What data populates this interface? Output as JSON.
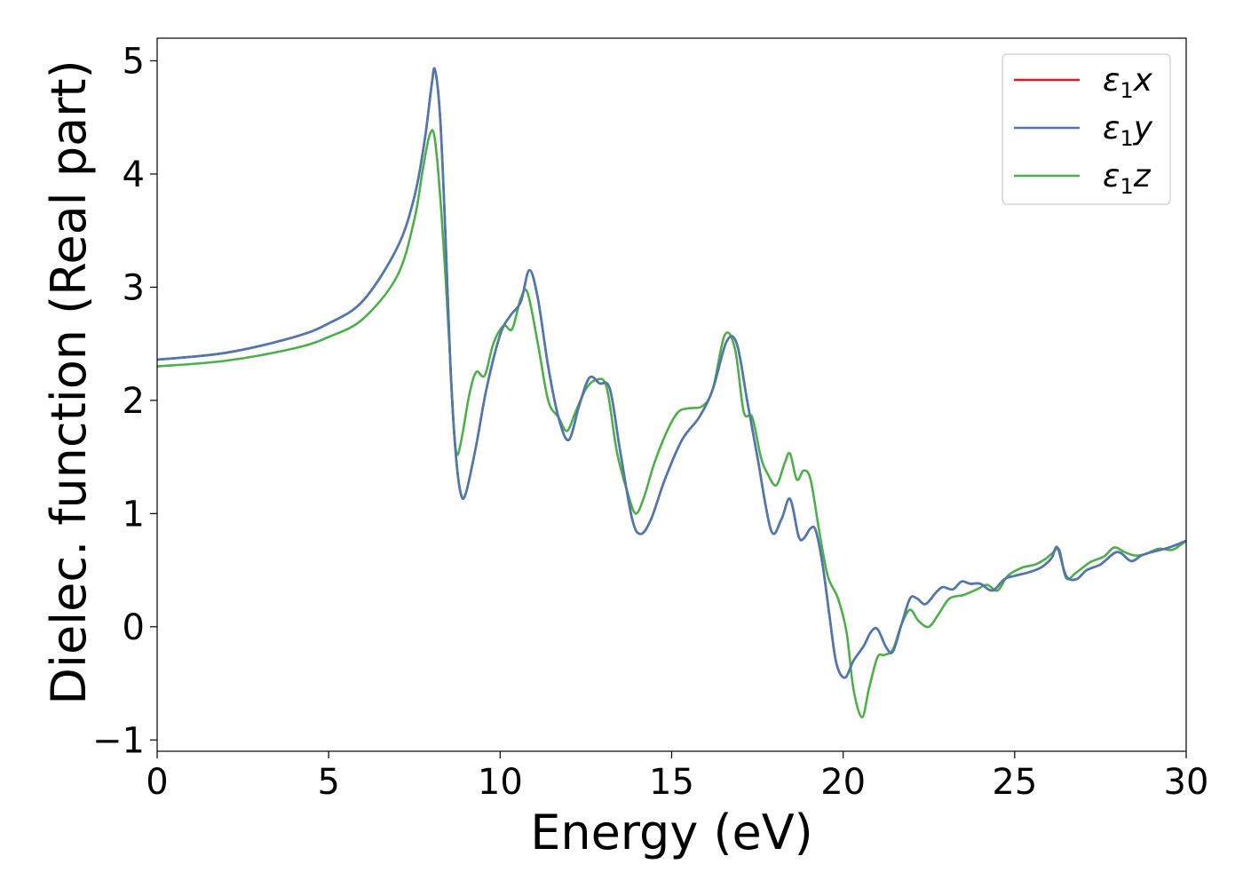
{
  "chart_data": {
    "type": "line",
    "title": "",
    "xlabel": "Energy (eV)",
    "ylabel": "Dielec. function (Real part)",
    "xlim": [
      0,
      30
    ],
    "ylim": [
      -1.1,
      5.2
    ],
    "xticks": [
      0,
      5,
      10,
      15,
      20,
      25,
      30
    ],
    "yticks": [
      -1,
      0,
      1,
      2,
      3,
      4,
      5
    ],
    "xtick_labels": [
      "0",
      "5",
      "10",
      "15",
      "20",
      "25",
      "30"
    ],
    "ytick_labels": [
      "−1",
      "0",
      "1",
      "2",
      "3",
      "4",
      "5"
    ],
    "grid": false,
    "legend_position": "top-right",
    "series": [
      {
        "name": "ε1x",
        "symbol": "ε",
        "subscript": "1",
        "suffix": "x",
        "color": "#e41a1c",
        "x": [
          0,
          2,
          4,
          5,
          6,
          7,
          7.5,
          7.8,
          8.0,
          8.1,
          8.25,
          8.4,
          8.55,
          8.7,
          8.85,
          9.0,
          9.3,
          9.6,
          10.0,
          10.3,
          10.6,
          10.85,
          11.1,
          11.4,
          11.7,
          12.0,
          12.3,
          12.6,
          12.9,
          13.2,
          13.5,
          13.85,
          14.1,
          14.4,
          14.8,
          15.3,
          15.8,
          16.2,
          16.6,
          16.9,
          17.2,
          17.5,
          17.9,
          18.2,
          18.45,
          18.7,
          18.85,
          19.05,
          19.2,
          19.4,
          19.6,
          19.8,
          20.05,
          20.3,
          20.6,
          20.8,
          21.0,
          21.25,
          21.45,
          21.7,
          21.95,
          22.15,
          22.4,
          22.7,
          22.9,
          23.2,
          23.45,
          23.7,
          24.0,
          24.35,
          24.7,
          25.0,
          25.4,
          25.75,
          26.0,
          26.1,
          26.25,
          26.5,
          26.8,
          27.1,
          27.5,
          27.9,
          28.1,
          28.4,
          28.7,
          29.0,
          29.5,
          30.0
        ],
        "y": [
          2.36,
          2.42,
          2.56,
          2.68,
          2.88,
          3.35,
          3.8,
          4.3,
          4.78,
          4.92,
          4.5,
          3.5,
          2.3,
          1.55,
          1.18,
          1.18,
          1.6,
          2.1,
          2.58,
          2.75,
          2.87,
          3.15,
          2.9,
          2.3,
          1.85,
          1.65,
          1.95,
          2.2,
          2.15,
          2.1,
          1.55,
          0.95,
          0.82,
          0.95,
          1.3,
          1.65,
          1.85,
          2.1,
          2.52,
          2.5,
          2.0,
          1.5,
          0.85,
          0.95,
          1.13,
          0.8,
          0.78,
          0.87,
          0.85,
          0.55,
          0.1,
          -0.32,
          -0.45,
          -0.3,
          -0.17,
          -0.05,
          -0.02,
          -0.18,
          -0.22,
          0.02,
          0.25,
          0.25,
          0.2,
          0.3,
          0.35,
          0.33,
          0.4,
          0.38,
          0.38,
          0.32,
          0.42,
          0.45,
          0.48,
          0.52,
          0.58,
          0.62,
          0.7,
          0.45,
          0.42,
          0.5,
          0.55,
          0.65,
          0.65,
          0.58,
          0.63,
          0.66,
          0.7,
          0.76
        ]
      },
      {
        "name": "ε1y",
        "symbol": "ε",
        "subscript": "1",
        "suffix": "y",
        "color": "#4a7ab0",
        "x": [
          0,
          2,
          4,
          5,
          6,
          7,
          7.5,
          7.8,
          8.0,
          8.1,
          8.25,
          8.4,
          8.55,
          8.7,
          8.85,
          9.0,
          9.3,
          9.6,
          10.0,
          10.3,
          10.6,
          10.85,
          11.1,
          11.4,
          11.7,
          12.0,
          12.3,
          12.6,
          12.9,
          13.2,
          13.5,
          13.85,
          14.1,
          14.4,
          14.8,
          15.3,
          15.8,
          16.2,
          16.6,
          16.9,
          17.2,
          17.5,
          17.9,
          18.2,
          18.45,
          18.7,
          18.85,
          19.05,
          19.2,
          19.4,
          19.6,
          19.8,
          20.05,
          20.3,
          20.6,
          20.8,
          21.0,
          21.25,
          21.45,
          21.7,
          21.95,
          22.15,
          22.4,
          22.7,
          22.9,
          23.2,
          23.45,
          23.7,
          24.0,
          24.35,
          24.7,
          25.0,
          25.4,
          25.75,
          26.0,
          26.1,
          26.25,
          26.5,
          26.8,
          27.1,
          27.5,
          27.9,
          28.1,
          28.4,
          28.7,
          29.0,
          29.5,
          30.0
        ],
        "y": [
          2.36,
          2.42,
          2.56,
          2.68,
          2.88,
          3.35,
          3.8,
          4.3,
          4.78,
          4.92,
          4.5,
          3.5,
          2.3,
          1.55,
          1.18,
          1.18,
          1.6,
          2.1,
          2.58,
          2.75,
          2.87,
          3.15,
          2.9,
          2.3,
          1.85,
          1.65,
          1.95,
          2.2,
          2.15,
          2.1,
          1.55,
          0.95,
          0.82,
          0.95,
          1.3,
          1.65,
          1.85,
          2.1,
          2.52,
          2.5,
          2.0,
          1.5,
          0.85,
          0.95,
          1.13,
          0.8,
          0.78,
          0.87,
          0.85,
          0.55,
          0.1,
          -0.32,
          -0.45,
          -0.3,
          -0.17,
          -0.05,
          -0.02,
          -0.18,
          -0.22,
          0.02,
          0.25,
          0.25,
          0.2,
          0.3,
          0.35,
          0.33,
          0.4,
          0.38,
          0.38,
          0.32,
          0.42,
          0.45,
          0.48,
          0.52,
          0.58,
          0.62,
          0.7,
          0.45,
          0.42,
          0.5,
          0.55,
          0.65,
          0.65,
          0.58,
          0.63,
          0.66,
          0.7,
          0.76
        ]
      },
      {
        "name": "ε1z",
        "symbol": "ε",
        "subscript": "1",
        "suffix": "z",
        "color": "#4daf4a",
        "x": [
          0,
          2,
          4,
          5,
          6,
          7,
          7.5,
          7.75,
          7.95,
          8.1,
          8.3,
          8.5,
          8.65,
          8.75,
          8.9,
          9.1,
          9.3,
          9.55,
          9.8,
          10.1,
          10.35,
          10.6,
          10.8,
          11.1,
          11.4,
          11.7,
          11.95,
          12.2,
          12.5,
          12.8,
          13.1,
          13.4,
          13.7,
          13.95,
          14.2,
          14.5,
          14.9,
          15.2,
          15.5,
          15.9,
          16.2,
          16.55,
          16.85,
          17.1,
          17.35,
          17.6,
          17.8,
          18.05,
          18.3,
          18.45,
          18.65,
          18.85,
          19.05,
          19.3,
          19.55,
          19.85,
          20.1,
          20.3,
          20.55,
          20.75,
          21.0,
          21.2,
          21.45,
          21.7,
          21.95,
          22.2,
          22.5,
          22.8,
          23.1,
          23.5,
          23.9,
          24.2,
          24.5,
          24.8,
          25.2,
          25.6,
          25.9,
          26.1,
          26.3,
          26.5,
          26.8,
          27.2,
          27.6,
          27.9,
          28.2,
          28.5,
          28.8,
          29.2,
          29.6,
          30.0
        ],
        "y": [
          2.3,
          2.35,
          2.46,
          2.56,
          2.72,
          3.1,
          3.6,
          4.05,
          4.35,
          4.3,
          3.6,
          2.6,
          1.75,
          1.52,
          1.7,
          2.05,
          2.25,
          2.22,
          2.5,
          2.66,
          2.63,
          2.9,
          2.95,
          2.5,
          2.0,
          1.85,
          1.73,
          1.9,
          2.1,
          2.18,
          2.12,
          1.55,
          1.2,
          1.0,
          1.15,
          1.45,
          1.75,
          1.9,
          1.93,
          1.95,
          2.1,
          2.58,
          2.45,
          1.9,
          1.85,
          1.5,
          1.35,
          1.25,
          1.45,
          1.53,
          1.3,
          1.38,
          1.3,
          0.85,
          0.45,
          0.25,
          -0.05,
          -0.55,
          -0.8,
          -0.55,
          -0.27,
          -0.25,
          -0.2,
          0.02,
          0.15,
          0.05,
          0.0,
          0.12,
          0.25,
          0.28,
          0.33,
          0.37,
          0.32,
          0.45,
          0.52,
          0.55,
          0.6,
          0.65,
          0.68,
          0.43,
          0.48,
          0.57,
          0.62,
          0.7,
          0.66,
          0.63,
          0.64,
          0.69,
          0.68,
          0.76
        ]
      }
    ]
  }
}
